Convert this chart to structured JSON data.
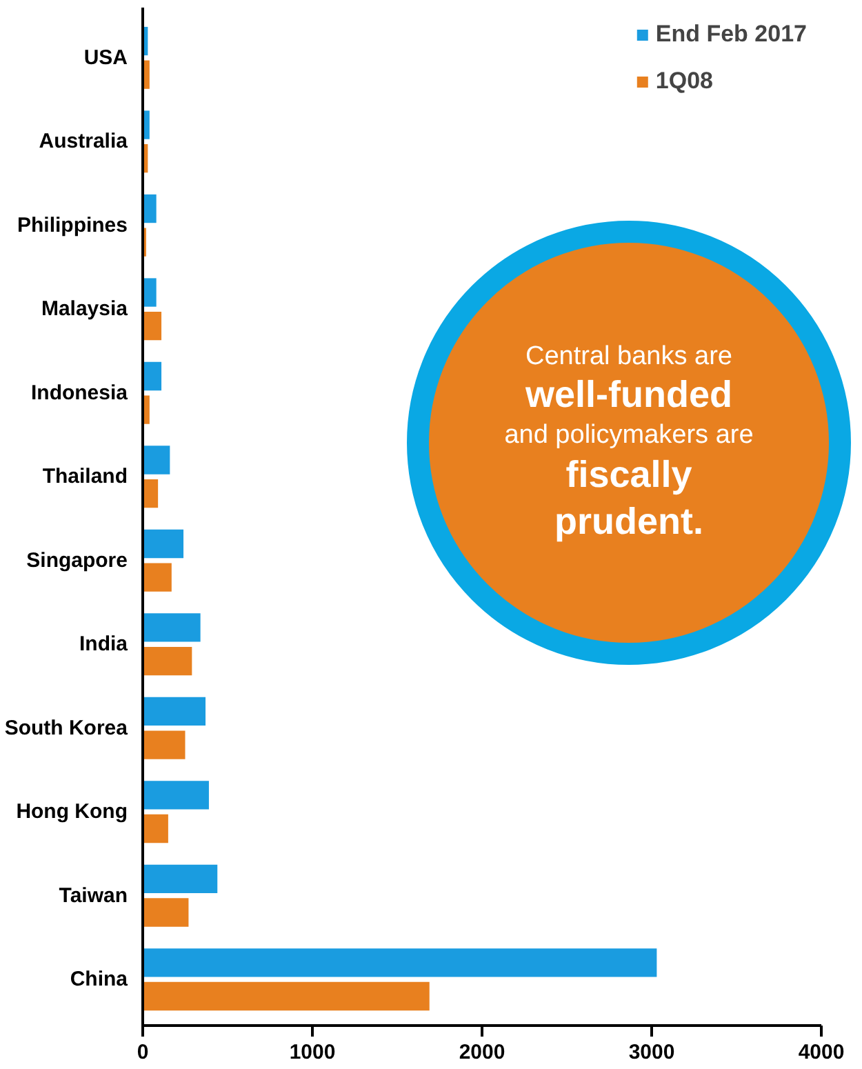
{
  "chart_data": {
    "type": "bar",
    "orientation": "horizontal",
    "categories": [
      "USA",
      "Australia",
      "Philippines",
      "Malaysia",
      "Indonesia",
      "Thailand",
      "Singapore",
      "India",
      "South Korea",
      "Hong Kong",
      "Taiwan",
      "China"
    ],
    "series": [
      {
        "name": "End Feb 2017",
        "color": "#1a9ce0",
        "values": [
          30,
          40,
          80,
          80,
          110,
          160,
          240,
          340,
          370,
          390,
          440,
          3030
        ]
      },
      {
        "name": "1Q08",
        "color": "#e8801f",
        "values": [
          40,
          30,
          20,
          110,
          40,
          90,
          170,
          290,
          250,
          150,
          270,
          1690
        ]
      }
    ],
    "xlim": [
      0,
      4000
    ],
    "xticks": [
      0,
      1000,
      2000,
      3000,
      4000
    ],
    "grid": false,
    "legend": "top right",
    "annotations": [
      "Central banks are",
      "well-funded",
      "and policymakers are",
      "fiscally",
      "prudent."
    ]
  }
}
